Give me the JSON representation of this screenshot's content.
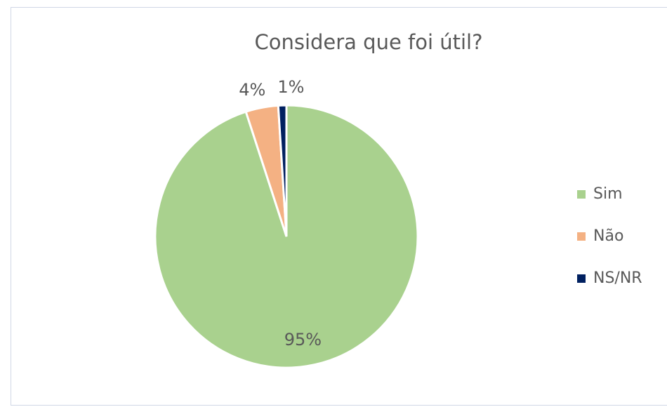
{
  "chart_data": {
    "type": "pie",
    "title": "Considera que foi útil?",
    "categories": [
      "Sim",
      "Não",
      "NS/NR"
    ],
    "values": [
      95,
      4,
      1
    ],
    "value_labels": [
      "95%",
      "4%",
      "1%"
    ],
    "colors": [
      "#a9d18e",
      "#f4b183",
      "#002060"
    ],
    "legend": "right"
  }
}
